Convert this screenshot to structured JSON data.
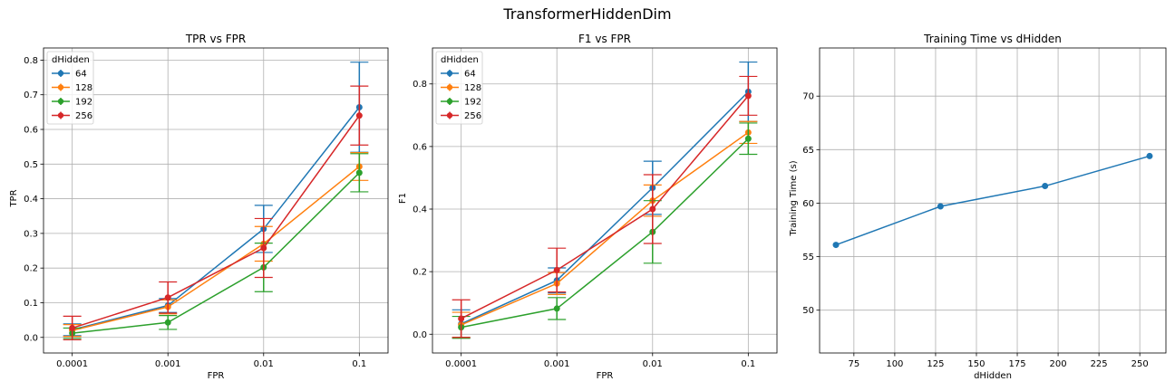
{
  "suptitle": "TransformerHiddenDim",
  "colors": {
    "64": "#1f77b4",
    "128": "#ff7f0e",
    "192": "#2ca02c",
    "256": "#d62728"
  },
  "chart_data": [
    {
      "type": "line",
      "title": "TPR vs FPR",
      "xlabel": "FPR",
      "ylabel": "TPR",
      "x_scale": "log",
      "categories": [
        "0.0001",
        "0.001",
        "0.01",
        "0.1"
      ],
      "ylim": [
        -0.045,
        0.835
      ],
      "yticks": [
        "0.0",
        "0.1",
        "0.2",
        "0.3",
        "0.4",
        "0.5",
        "0.6",
        "0.7",
        "0.8"
      ],
      "grid": true,
      "legend": {
        "title": "dHidden",
        "placement": "top-left"
      },
      "series": [
        {
          "name": "64",
          "values": [
            0.022,
            0.092,
            0.313,
            0.664
          ],
          "errors": [
            0.017,
            0.02,
            0.068,
            0.13
          ]
        },
        {
          "name": "128",
          "values": [
            0.02,
            0.088,
            0.27,
            0.493
          ],
          "errors": [
            0.017,
            0.02,
            0.05,
            0.04
          ]
        },
        {
          "name": "192",
          "values": [
            0.012,
            0.043,
            0.202,
            0.475
          ],
          "errors": [
            0.015,
            0.02,
            0.07,
            0.055
          ]
        },
        {
          "name": "256",
          "values": [
            0.027,
            0.115,
            0.258,
            0.64
          ],
          "errors": [
            0.034,
            0.045,
            0.085,
            0.085
          ]
        }
      ]
    },
    {
      "type": "line",
      "title": "F1 vs FPR",
      "xlabel": "FPR",
      "ylabel": "F1",
      "x_scale": "log",
      "categories": [
        "0.0001",
        "0.001",
        "0.01",
        "0.1"
      ],
      "ylim": [
        -0.06,
        0.915
      ],
      "yticks": [
        "0.0",
        "0.2",
        "0.4",
        "0.6",
        "0.8"
      ],
      "grid": true,
      "legend": {
        "title": "dHidden",
        "placement": "top-left"
      },
      "series": [
        {
          "name": "64",
          "values": [
            0.033,
            0.172,
            0.468,
            0.775
          ],
          "errors": [
            0.045,
            0.04,
            0.085,
            0.095
          ]
        },
        {
          "name": "128",
          "values": [
            0.03,
            0.162,
            0.427,
            0.645
          ],
          "errors": [
            0.04,
            0.035,
            0.05,
            0.035
          ]
        },
        {
          "name": "192",
          "values": [
            0.022,
            0.082,
            0.327,
            0.625
          ],
          "errors": [
            0.035,
            0.035,
            0.1,
            0.05
          ]
        },
        {
          "name": "256",
          "values": [
            0.05,
            0.205,
            0.4,
            0.762
          ],
          "errors": [
            0.06,
            0.07,
            0.11,
            0.062
          ]
        }
      ]
    },
    {
      "type": "line",
      "title": "Training Time vs dHidden",
      "xlabel": "dHidden",
      "ylabel": "Training Time (s)",
      "xlim": [
        54,
        266
      ],
      "ylim": [
        46,
        74.5
      ],
      "xticks": [
        75,
        100,
        125,
        150,
        175,
        200,
        225,
        250
      ],
      "yticks": [
        50,
        55,
        60,
        65,
        70
      ],
      "grid": true,
      "series": [
        {
          "name": "",
          "x": [
            64,
            128,
            192,
            256
          ],
          "values": [
            56.1,
            59.7,
            61.6,
            64.4
          ]
        }
      ]
    }
  ]
}
